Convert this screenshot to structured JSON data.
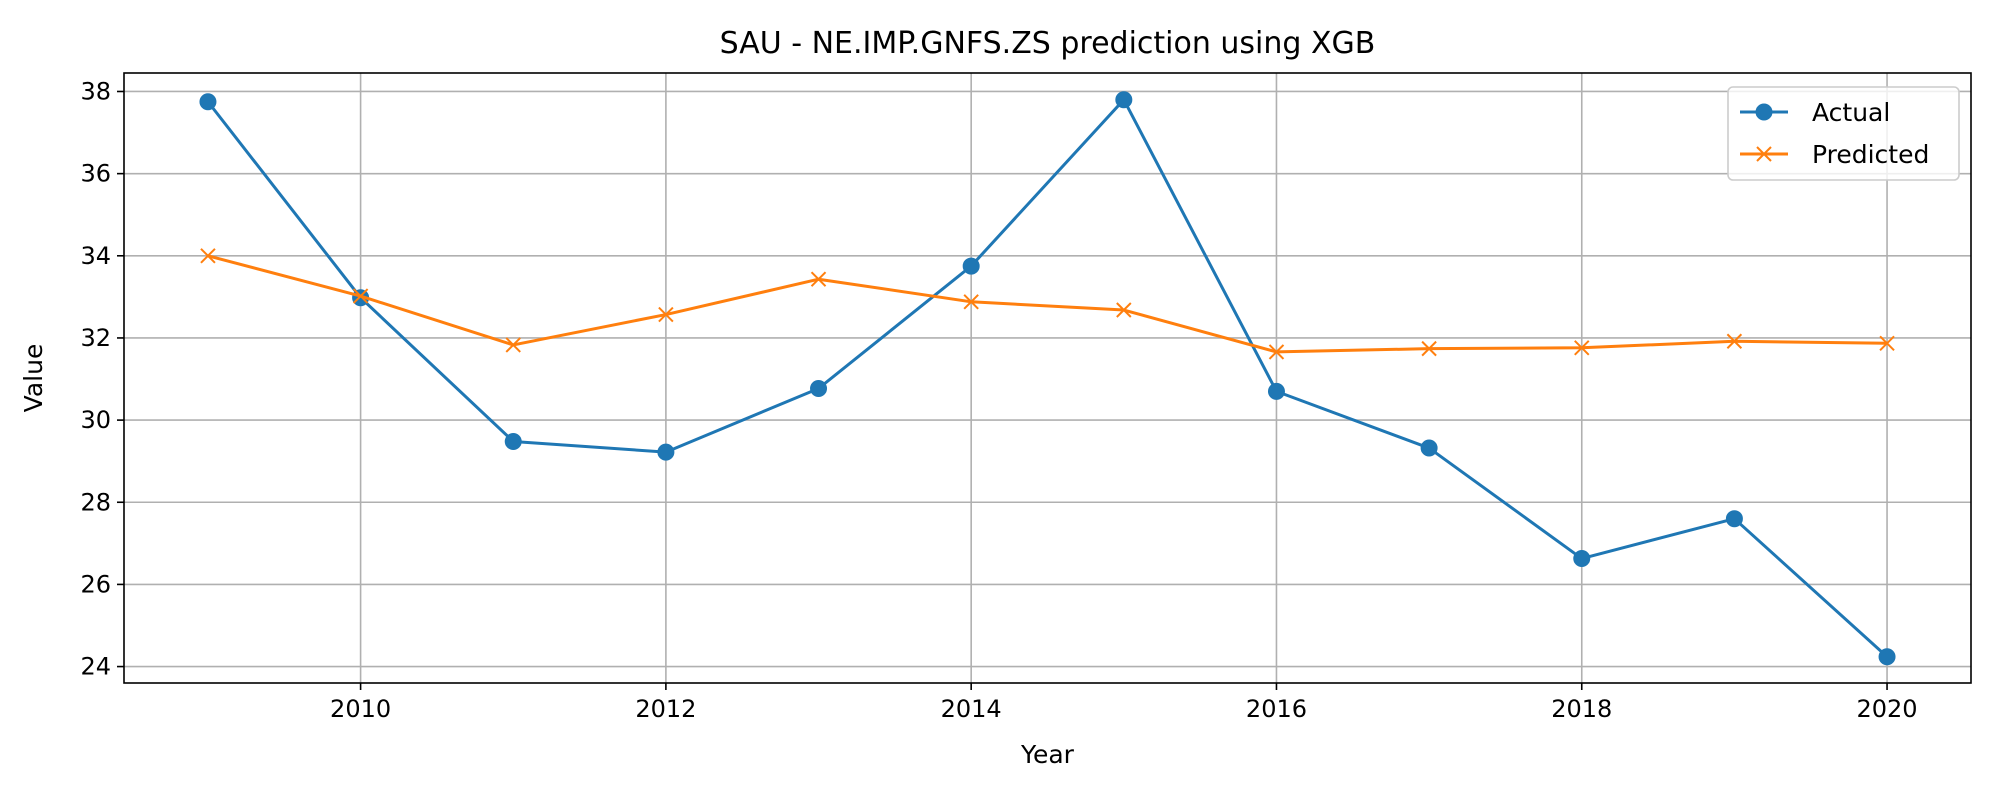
{
  "chart_data": {
    "type": "line",
    "title": "SAU - NE.IMP.GNFS.ZS prediction using XGB",
    "xlabel": "Year",
    "ylabel": "Value",
    "x": [
      2009,
      2010,
      2011,
      2012,
      2013,
      2014,
      2015,
      2016,
      2017,
      2018,
      2019,
      2020
    ],
    "xlim": [
      2008.45,
      2020.55
    ],
    "ylim": [
      23.6,
      38.45
    ],
    "xticks": [
      2010,
      2012,
      2014,
      2016,
      2018,
      2020
    ],
    "yticks": [
      24,
      26,
      28,
      30,
      32,
      34,
      36,
      38
    ],
    "grid": true,
    "legend_position": "top-right",
    "series": [
      {
        "name": "Actual",
        "color": "#1f77b4",
        "marker": "circle",
        "values": [
          37.75,
          32.98,
          29.48,
          29.22,
          30.77,
          33.75,
          37.8,
          30.7,
          29.32,
          26.63,
          27.6,
          24.24
        ]
      },
      {
        "name": "Predicted",
        "color": "#ff7f0e",
        "marker": "x",
        "values": [
          34.0,
          33.02,
          31.83,
          32.57,
          33.43,
          32.88,
          32.68,
          31.66,
          31.74,
          31.76,
          31.92,
          31.87
        ]
      }
    ]
  }
}
